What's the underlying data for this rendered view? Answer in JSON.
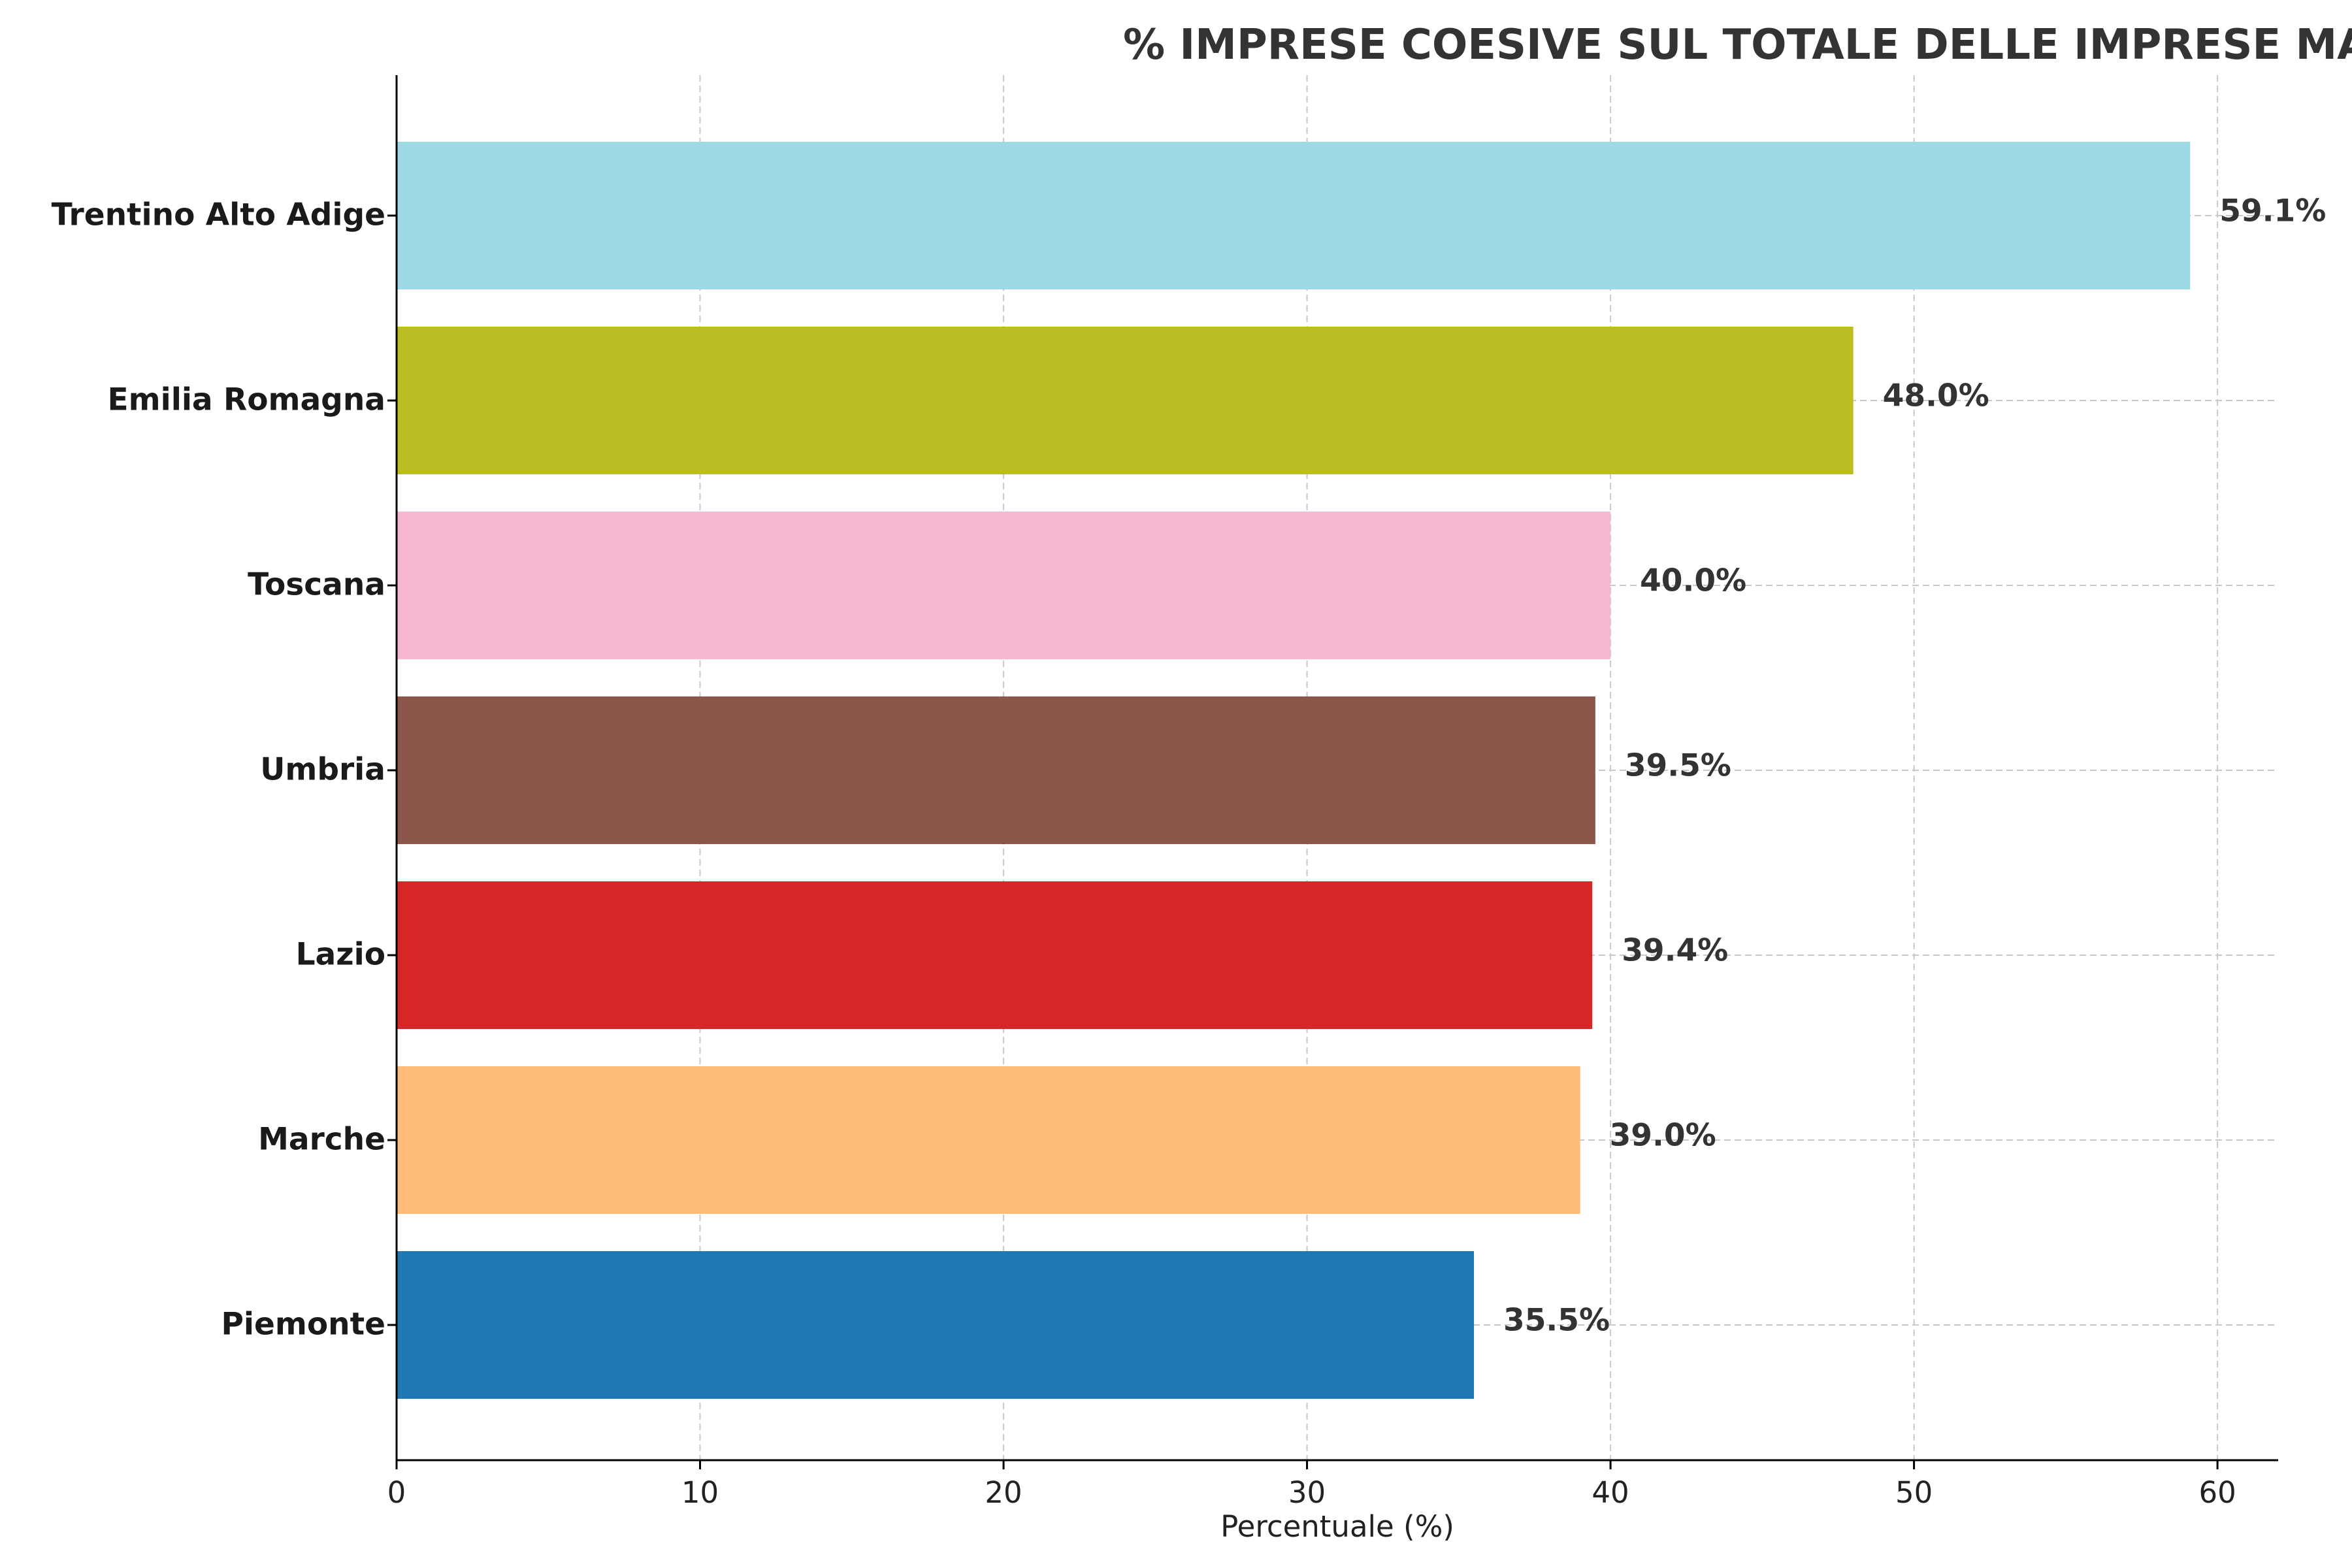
{
  "chart_data": {
    "type": "bar",
    "orientation": "horizontal",
    "title": "% IMPRESE COESIVE SUL TOTALE DELLE IMPRESE MANIFATTURIERE PER REGIONE",
    "xlabel": "Percentuale (%)",
    "ylabel": "",
    "xlim": [
      0,
      62
    ],
    "xticks": [
      0,
      10,
      20,
      30,
      40,
      50,
      60
    ],
    "grid": true,
    "categories": [
      "Piemonte",
      "Marche",
      "Lazio",
      "Umbria",
      "Toscana",
      "Emilia Romagna",
      "Trentino Alto Adige"
    ],
    "values": [
      35.5,
      39.0,
      39.4,
      39.5,
      40.0,
      48.0,
      59.1
    ],
    "value_labels": [
      "35.5%",
      "39.0%",
      "39.4%",
      "39.5%",
      "40.0%",
      "48.0%",
      "59.1%"
    ],
    "colors": [
      "#1f77b4",
      "#ffbb78",
      "#d62728",
      "#8c564b",
      "#f7b6d2",
      "#bcbd22",
      "#9edae5"
    ]
  }
}
